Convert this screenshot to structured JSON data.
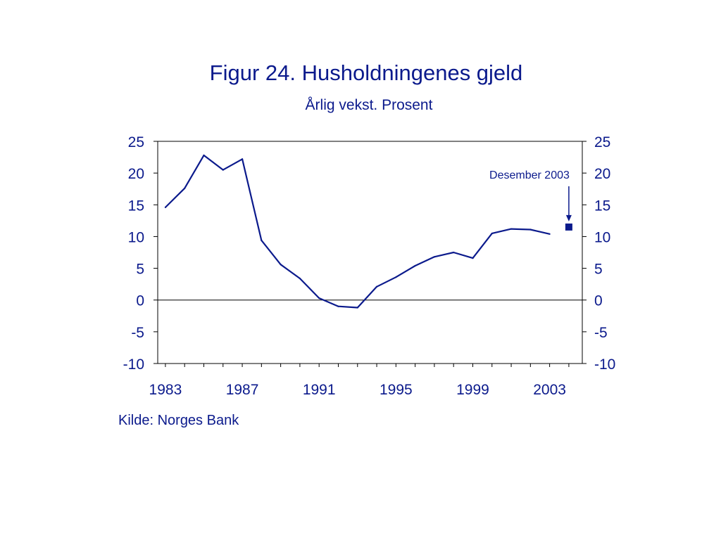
{
  "chart_data": {
    "type": "line",
    "title": "Figur 24. Husholdningenes gjeld",
    "subtitle": "Årlig vekst. Prosent",
    "xlabel": "",
    "ylabel": "",
    "ylim": [
      -10,
      25
    ],
    "xlim": [
      1982.6,
      2004.7
    ],
    "y_ticks": [
      "25",
      "20",
      "15",
      "10",
      "5",
      "0",
      "-5",
      "-10"
    ],
    "x_ticks": [
      "1983",
      "1987",
      "1991",
      "1995",
      "1999",
      "2003"
    ],
    "grid": false,
    "series": [
      {
        "values": [
          {
            "x": 1983,
            "y": 14.6
          },
          {
            "x": 1984,
            "y": 17.6
          },
          {
            "x": 1985,
            "y": 22.8
          },
          {
            "x": 1986,
            "y": 20.5
          },
          {
            "x": 1987,
            "y": 22.2
          },
          {
            "x": 1988,
            "y": 9.4
          },
          {
            "x": 1989,
            "y": 5.6
          },
          {
            "x": 1990,
            "y": 3.4
          },
          {
            "x": 1991,
            "y": 0.3
          },
          {
            "x": 1992,
            "y": -1.0
          },
          {
            "x": 1993,
            "y": -1.2
          },
          {
            "x": 1994,
            "y": 2.1
          },
          {
            "x": 1995,
            "y": 3.6
          },
          {
            "x": 1996,
            "y": 5.4
          },
          {
            "x": 1997,
            "y": 6.8
          },
          {
            "x": 1998,
            "y": 7.5
          },
          {
            "x": 1999,
            "y": 6.6
          },
          {
            "x": 2000,
            "y": 10.5
          },
          {
            "x": 2001,
            "y": 11.2
          },
          {
            "x": 2002,
            "y": 11.1
          },
          {
            "x": 2003,
            "y": 10.4
          }
        ]
      }
    ],
    "marker_point": {
      "label": "Desember 2003",
      "x": 2004.0,
      "y": 11.5
    },
    "zero_line": true
  },
  "source": "Kilde: Norges Bank",
  "colors": {
    "ink": "#0b1a8c",
    "axis": "#000000"
  }
}
